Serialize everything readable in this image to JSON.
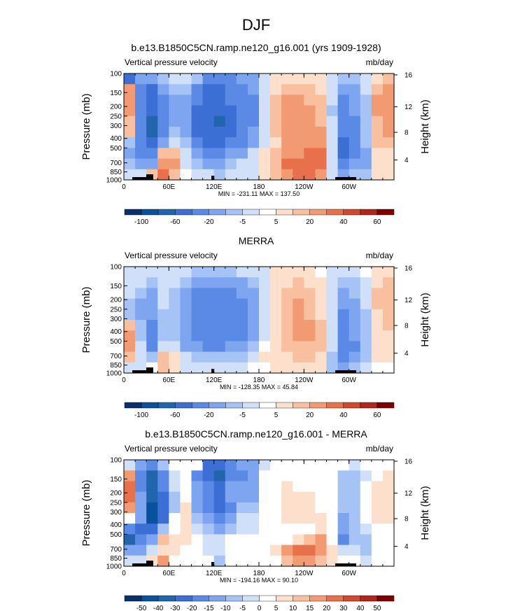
{
  "figure": {
    "title": "DJF"
  },
  "colors": {
    "scale": [
      "#08306b",
      "#08519c",
      "#2166ac",
      "#3b6fd4",
      "#5a8ae6",
      "#7ea6f0",
      "#a5c3f4",
      "#cfe0f8",
      "#ffffff",
      "#fde0cc",
      "#f9c0a0",
      "#f29a72",
      "#e8714c",
      "#d4472e",
      "#b2251b",
      "#7f0000"
    ]
  },
  "chart_data": [
    {
      "type": "heatmap",
      "title": "b.e13.B1850C5CN.ramp.ne120_g16.001 (yrs 1909-1928)",
      "left_label": "Vertical pressure velocity",
      "right_label": "mb/day",
      "ylabel": "Pressure (mb)",
      "ylabel_right": "Height (km)",
      "x_ticks": [
        "0",
        "60E",
        "120E",
        "180",
        "120W",
        "60W"
      ],
      "y_ticks": [
        "100",
        "150",
        "200",
        "250",
        "300",
        "400",
        "500",
        "700",
        "850",
        "1000"
      ],
      "y2_ticks": [
        "16",
        "12",
        "8",
        "4"
      ],
      "stats_text": "MIN = -231.11  MAX = 137.50",
      "colorbar_labels": [
        "-100",
        "-60",
        "-20",
        "-5",
        "5",
        "20",
        "40",
        "60"
      ],
      "grid_values": [
        [
          -50,
          -15,
          -20,
          -10,
          -5,
          -3,
          -10,
          -30,
          -35,
          -25,
          -20,
          -15,
          -5,
          1,
          3,
          3,
          2,
          1,
          -2,
          -6,
          -8,
          -3,
          4,
          5
        ],
        [
          10,
          -25,
          -45,
          -20,
          -10,
          -10,
          -35,
          -45,
          -50,
          -35,
          -30,
          -20,
          -5,
          4,
          8,
          8,
          6,
          4,
          -3,
          -15,
          -12,
          -5,
          8,
          10
        ],
        [
          15,
          -30,
          -55,
          -25,
          -12,
          -12,
          -40,
          -50,
          -55,
          -40,
          -35,
          -25,
          -5,
          5,
          12,
          12,
          9,
          5,
          -5,
          -25,
          -18,
          -6,
          10,
          14
        ],
        [
          12,
          -28,
          -60,
          -30,
          -15,
          -15,
          -45,
          -55,
          -60,
          -45,
          -35,
          -25,
          -5,
          5,
          14,
          15,
          12,
          6,
          -6,
          -30,
          -20,
          -7,
          10,
          15
        ],
        [
          8,
          -25,
          -65,
          -30,
          -15,
          -15,
          -50,
          -60,
          -65,
          -50,
          -35,
          -22,
          -4,
          6,
          15,
          17,
          15,
          8,
          -5,
          -35,
          -22,
          -8,
          9,
          14
        ],
        [
          5,
          -25,
          -70,
          -30,
          -10,
          -12,
          -45,
          -55,
          -60,
          -45,
          -30,
          -20,
          -3,
          5,
          15,
          18,
          16,
          10,
          -4,
          -40,
          -25,
          -8,
          8,
          12
        ],
        [
          -10,
          -30,
          -60,
          -20,
          -5,
          -10,
          -35,
          -45,
          -50,
          -35,
          -25,
          -15,
          -2,
          4,
          12,
          15,
          14,
          12,
          -5,
          -45,
          -28,
          -10,
          5,
          8
        ],
        [
          -20,
          -25,
          -40,
          5,
          5,
          -5,
          -20,
          -30,
          -30,
          -20,
          -15,
          -5,
          2,
          5,
          10,
          15,
          20,
          25,
          -3,
          -50,
          -30,
          -15,
          3,
          2
        ],
        [
          -10,
          -15,
          -15,
          15,
          10,
          -2,
          -8,
          -15,
          -15,
          -10,
          -5,
          -2,
          3,
          8,
          20,
          25,
          25,
          20,
          -2,
          -30,
          -20,
          -12,
          3,
          4
        ],
        [
          -5,
          -5,
          5,
          20,
          5,
          0,
          -2,
          -5,
          -10,
          -5,
          -3,
          -2,
          2,
          5,
          15,
          20,
          20,
          15,
          -3,
          -15,
          -10,
          -8,
          2,
          2
        ]
      ]
    },
    {
      "type": "heatmap",
      "title": "MERRA",
      "left_label": "Vertical pressure velocity",
      "right_label": "mb/day",
      "ylabel": "Pressure (mb)",
      "ylabel_right": "Height (km)",
      "x_ticks": [
        "0",
        "60E",
        "120E",
        "180",
        "120W",
        "60W"
      ],
      "y_ticks": [
        "100",
        "150",
        "200",
        "250",
        "300",
        "400",
        "500",
        "700",
        "850",
        "1000"
      ],
      "y2_ticks": [
        "16",
        "12",
        "8",
        "4"
      ],
      "stats_text": "MIN = -128.35  MAX = 45.84",
      "colorbar_labels": [
        "-100",
        "-60",
        "-20",
        "-5",
        "5",
        "20",
        "40",
        "60"
      ],
      "grid_values": [
        [
          -2,
          -3,
          -3,
          -2,
          -3,
          -5,
          -8,
          -8,
          -8,
          -6,
          -5,
          -4,
          -2,
          1,
          2,
          2,
          1,
          0,
          -2,
          -4,
          -3,
          -1,
          2,
          3
        ],
        [
          -3,
          -5,
          -6,
          -3,
          -5,
          -10,
          -15,
          -18,
          -18,
          -15,
          -12,
          -8,
          -3,
          2,
          4,
          5,
          3,
          1,
          -3,
          -8,
          -6,
          -2,
          4,
          5
        ],
        [
          -5,
          -10,
          -15,
          -5,
          -8,
          -15,
          -25,
          -30,
          -30,
          -25,
          -20,
          -12,
          -4,
          3,
          6,
          8,
          5,
          2,
          -4,
          -15,
          -10,
          -4,
          5,
          8
        ],
        [
          -10,
          -15,
          -20,
          -5,
          -8,
          -18,
          -30,
          -35,
          -35,
          -30,
          -22,
          -14,
          -4,
          4,
          8,
          10,
          7,
          3,
          -5,
          -20,
          -14,
          -5,
          5,
          9
        ],
        [
          -8,
          -12,
          -20,
          -6,
          -8,
          -20,
          -35,
          -40,
          -40,
          -32,
          -25,
          -15,
          -4,
          4,
          9,
          12,
          9,
          4,
          -5,
          -25,
          -16,
          -6,
          4,
          8
        ],
        [
          5,
          -10,
          -25,
          -8,
          -8,
          -20,
          -35,
          -40,
          -40,
          -32,
          -25,
          -15,
          -3,
          4,
          9,
          12,
          10,
          5,
          -4,
          -28,
          -18,
          -6,
          3,
          6
        ],
        [
          10,
          -8,
          -30,
          -10,
          -6,
          -18,
          -30,
          -35,
          -35,
          -28,
          -22,
          -12,
          -2,
          3,
          8,
          11,
          10,
          6,
          -4,
          -30,
          -20,
          -7,
          2,
          4
        ],
        [
          12,
          -5,
          -25,
          -5,
          -3,
          -12,
          -20,
          -25,
          -25,
          -20,
          -15,
          -8,
          0,
          3,
          6,
          8,
          8,
          6,
          -5,
          -32,
          -22,
          -8,
          2,
          2
        ],
        [
          5,
          -3,
          -10,
          8,
          3,
          -5,
          -8,
          -10,
          -10,
          -8,
          -6,
          -3,
          1,
          2,
          4,
          5,
          5,
          4,
          -8,
          -25,
          -15,
          -6,
          1,
          1
        ],
        [
          -2,
          -2,
          0,
          5,
          2,
          -2,
          -3,
          -4,
          -4,
          -3,
          -2,
          -1,
          0,
          1,
          2,
          2,
          2,
          1,
          -10,
          -15,
          -8,
          -3,
          0,
          0
        ]
      ]
    },
    {
      "type": "heatmap",
      "title": "b.e13.B1850C5CN.ramp.ne120_g16.001 - MERRA",
      "left_label": "Vertical pressure velocity",
      "right_label": "mb/day",
      "ylabel": "Pressure (mb)",
      "ylabel_right": "Height (km)",
      "x_ticks": [
        "0",
        "60E",
        "120E",
        "180",
        "120W",
        "60W"
      ],
      "y_ticks": [
        "100",
        "150",
        "200",
        "250",
        "300",
        "400",
        "500",
        "700",
        "850",
        "1000"
      ],
      "y2_ticks": [
        "16",
        "12",
        "8",
        "4"
      ],
      "stats_text": "MIN = -194.16  MAX = 90.10",
      "colorbar_labels": [
        "-50",
        "-40",
        "-30",
        "-20",
        "-15",
        "-10",
        "-5",
        "0",
        "5",
        "10",
        "15",
        "20",
        "30",
        "40",
        "50"
      ],
      "grid_values": [
        [
          -4,
          -12,
          -17,
          -8,
          -2,
          2,
          -2,
          -22,
          -27,
          -19,
          -15,
          -11,
          -3,
          0,
          1,
          1,
          1,
          1,
          0,
          -2,
          -5,
          -2,
          2,
          2
        ],
        [
          15,
          -20,
          -39,
          -17,
          -5,
          0,
          -20,
          -27,
          -32,
          -20,
          -18,
          -12,
          -2,
          2,
          4,
          3,
          3,
          3,
          0,
          -7,
          -6,
          -3,
          4,
          5
        ],
        [
          20,
          -20,
          -40,
          -20,
          -4,
          3,
          -15,
          -20,
          -25,
          -15,
          -15,
          -13,
          -1,
          2,
          6,
          4,
          4,
          3,
          -1,
          -10,
          -8,
          -2,
          5,
          6
        ],
        [
          22,
          -13,
          -40,
          -25,
          -7,
          3,
          -15,
          -20,
          -25,
          -15,
          -13,
          -11,
          -1,
          1,
          6,
          5,
          5,
          3,
          -1,
          -10,
          -6,
          -2,
          5,
          6
        ],
        [
          16,
          -13,
          -45,
          -24,
          -7,
          5,
          -15,
          -20,
          -25,
          -18,
          -10,
          -7,
          0,
          2,
          6,
          5,
          6,
          4,
          0,
          -10,
          -6,
          -2,
          5,
          6
        ],
        [
          0,
          -15,
          -45,
          -22,
          -2,
          8,
          -10,
          -15,
          -20,
          -13,
          -5,
          -5,
          0,
          1,
          6,
          6,
          6,
          5,
          0,
          -12,
          -7,
          -2,
          5,
          6
        ],
        [
          -20,
          -22,
          -30,
          -10,
          1,
          8,
          -5,
          -10,
          -15,
          -7,
          -3,
          -3,
          0,
          1,
          4,
          4,
          4,
          6,
          -1,
          -15,
          -8,
          -3,
          3,
          4
        ],
        [
          -32,
          -20,
          -15,
          10,
          8,
          7,
          0,
          -5,
          -5,
          0,
          0,
          3,
          2,
          2,
          4,
          7,
          12,
          19,
          2,
          -18,
          -8,
          -7,
          1,
          0
        ],
        [
          -15,
          -12,
          -5,
          7,
          7,
          3,
          0,
          -5,
          -5,
          -2,
          1,
          1,
          2,
          6,
          16,
          20,
          20,
          16,
          6,
          -5,
          -5,
          -6,
          2,
          3
        ],
        [
          -3,
          -3,
          5,
          15,
          3,
          2,
          1,
          -1,
          -6,
          -2,
          -1,
          -1,
          2,
          4,
          13,
          18,
          18,
          14,
          7,
          0,
          -2,
          -5,
          2,
          2
        ]
      ]
    }
  ]
}
